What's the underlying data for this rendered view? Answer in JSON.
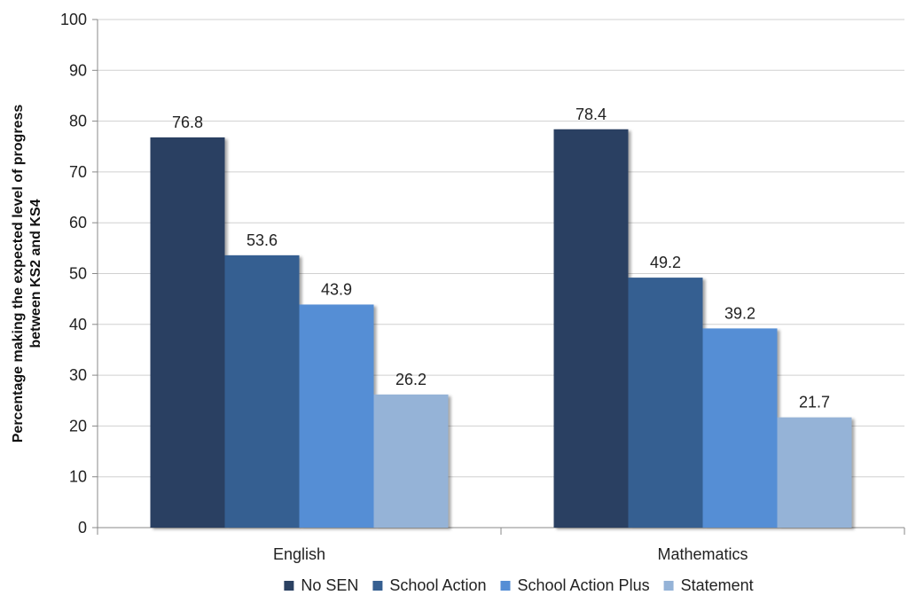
{
  "chart_data": {
    "type": "bar",
    "title": "",
    "xlabel": "",
    "ylabel": "Percentage making the expected level of progress between KS2 and KS4",
    "ylabel_lines": [
      "Percentage making the expected level of progress",
      "between KS2 and KS4"
    ],
    "ylim": [
      0,
      100
    ],
    "yticks": [
      0,
      10,
      20,
      30,
      40,
      50,
      60,
      70,
      80,
      90,
      100
    ],
    "grid": true,
    "legend_position": "bottom",
    "categories": [
      "English",
      "Mathematics"
    ],
    "series": [
      {
        "name": "No SEN",
        "values": [
          76.8,
          78.4
        ],
        "color": "#2b4162"
      },
      {
        "name": "School Action",
        "values": [
          53.6,
          49.2
        ],
        "color": "#365f91"
      },
      {
        "name": "School Action Plus",
        "values": [
          43.9,
          39.2
        ],
        "color": "#558ed5"
      },
      {
        "name": "Statement",
        "values": [
          26.2,
          21.7
        ],
        "color": "#95b3d7"
      }
    ]
  }
}
